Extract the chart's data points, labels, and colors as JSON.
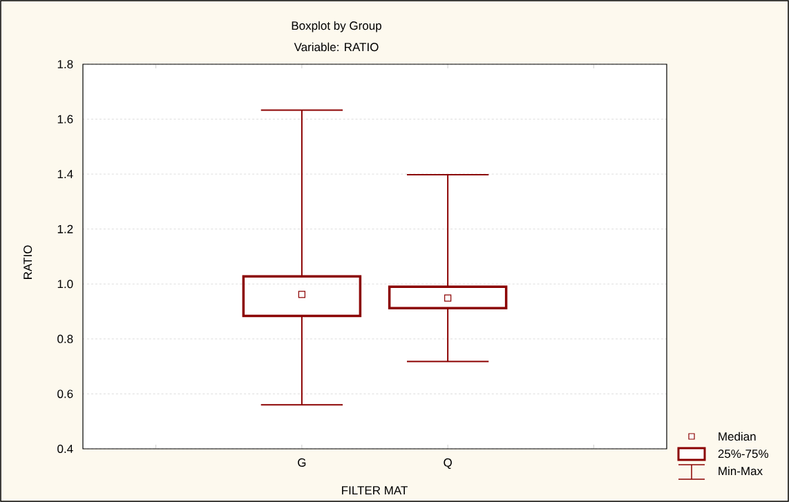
{
  "chart_data": {
    "type": "box",
    "title": "Boxplot by Group",
    "subtitle": "Variable: RATIO",
    "xlabel": "FILTER MAT",
    "ylabel": "RATIO",
    "categories": [
      "G",
      "Q"
    ],
    "series": [
      {
        "color": "#8b0000",
        "boxes": [
          {
            "low": 0.56,
            "q1": 0.884,
            "median": 0.962,
            "q3": 1.028,
            "high": 1.633
          },
          {
            "low": 0.718,
            "q1": 0.912,
            "median": 0.949,
            "q3": 0.99,
            "high": 1.398
          }
        ]
      }
    ],
    "ylim": [
      0.4,
      1.8
    ],
    "yticks": [
      {
        "value": 0.4,
        "label": "0.4"
      },
      {
        "value": 0.6,
        "label": "0.6"
      },
      {
        "value": 0.8,
        "label": "0.8"
      },
      {
        "value": 1.0,
        "label": "1.0"
      },
      {
        "value": 1.2,
        "label": "1.2"
      },
      {
        "value": 1.4,
        "label": "1.4"
      },
      {
        "value": 1.6,
        "label": "1.6"
      },
      {
        "value": 1.8,
        "label": "1.8"
      }
    ],
    "grid": "y",
    "marker": "square",
    "annotations": [
      "Median",
      "25%-75%",
      "Min-Max"
    ]
  }
}
